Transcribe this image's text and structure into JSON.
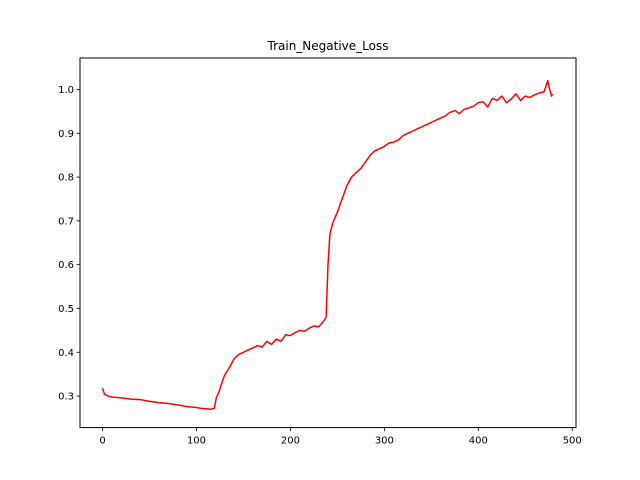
{
  "chart_data": {
    "type": "line",
    "title": "Train_Negative_Loss",
    "xlabel": "",
    "ylabel": "",
    "xlim": [
      -24,
      504
    ],
    "ylim": [
      0.228,
      1.072
    ],
    "xticks": [
      0,
      100,
      200,
      300,
      400,
      500
    ],
    "yticks": [
      0.3,
      0.4,
      0.5,
      0.6,
      0.7,
      0.8,
      0.9,
      1.0
    ],
    "xtick_labels": [
      "0",
      "100",
      "200",
      "300",
      "400",
      "500"
    ],
    "ytick_labels": [
      "0.3",
      "0.4",
      "0.5",
      "0.6",
      "0.7",
      "0.8",
      "0.9",
      "1.0"
    ],
    "grid": false,
    "legend": "none",
    "series": [
      {
        "color": "#ff0000",
        "x": [
          0,
          2,
          4,
          6,
          10,
          20,
          30,
          40,
          50,
          60,
          70,
          80,
          90,
          100,
          105,
          110,
          115,
          119,
          121,
          124,
          127,
          130,
          135,
          140,
          145,
          150,
          155,
          160,
          165,
          170,
          175,
          180,
          185,
          190,
          195,
          200,
          205,
          210,
          215,
          220,
          225,
          230,
          235,
          238,
          240,
          242,
          245,
          250,
          255,
          260,
          265,
          270,
          275,
          280,
          285,
          290,
          295,
          300,
          305,
          310,
          315,
          320,
          325,
          330,
          335,
          340,
          345,
          350,
          355,
          360,
          365,
          370,
          375,
          380,
          385,
          390,
          395,
          400,
          405,
          410,
          415,
          420,
          425,
          430,
          435,
          440,
          445,
          450,
          455,
          460,
          465,
          470,
          474,
          476,
          478,
          479
        ],
        "y": [
          0.318,
          0.305,
          0.302,
          0.3,
          0.298,
          0.296,
          0.293,
          0.292,
          0.288,
          0.285,
          0.283,
          0.28,
          0.276,
          0.274,
          0.272,
          0.271,
          0.27,
          0.272,
          0.295,
          0.31,
          0.33,
          0.348,
          0.365,
          0.385,
          0.395,
          0.4,
          0.405,
          0.41,
          0.415,
          0.412,
          0.425,
          0.418,
          0.43,
          0.425,
          0.44,
          0.438,
          0.445,
          0.45,
          0.448,
          0.455,
          0.46,
          0.458,
          0.47,
          0.48,
          0.6,
          0.67,
          0.695,
          0.72,
          0.75,
          0.78,
          0.8,
          0.81,
          0.82,
          0.835,
          0.85,
          0.86,
          0.865,
          0.87,
          0.878,
          0.88,
          0.885,
          0.895,
          0.9,
          0.905,
          0.91,
          0.915,
          0.92,
          0.925,
          0.93,
          0.935,
          0.94,
          0.948,
          0.952,
          0.945,
          0.955,
          0.958,
          0.962,
          0.97,
          0.972,
          0.96,
          0.98,
          0.975,
          0.985,
          0.97,
          0.978,
          0.99,
          0.975,
          0.985,
          0.982,
          0.988,
          0.992,
          0.995,
          1.02,
          1.0,
          0.985,
          0.99
        ]
      }
    ]
  }
}
